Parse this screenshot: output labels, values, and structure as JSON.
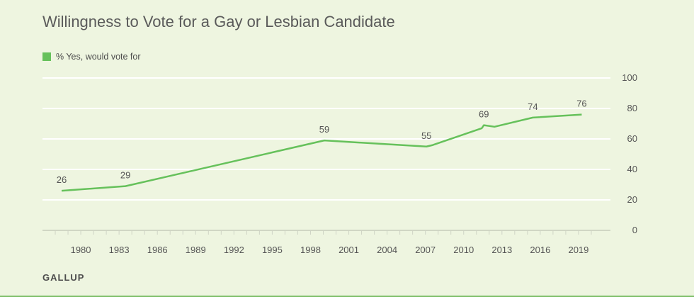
{
  "chart_data": {
    "type": "line",
    "title": "Willingness to Vote for a Gay or Lesbian Candidate",
    "xlabel": "",
    "ylabel": "",
    "ylim": [
      0,
      100
    ],
    "y_ticks": [
      "0",
      "20",
      "40",
      "60",
      "80",
      "100"
    ],
    "x_ticks": [
      "1980",
      "1983",
      "1986",
      "1989",
      "1992",
      "1995",
      "1998",
      "2001",
      "2004",
      "2007",
      "2010",
      "2013",
      "2016",
      "2019"
    ],
    "grid": true,
    "legend_position": "top-left",
    "series": [
      {
        "name": "% Yes, would vote for",
        "color": "#66c15b",
        "points": [
          {
            "x": "1978-07",
            "y": 26,
            "label": "26"
          },
          {
            "x": "1983-07",
            "y": 29,
            "label": "29"
          },
          {
            "x": "1999-02",
            "y": 59,
            "label": "59"
          },
          {
            "x": "2007-02",
            "y": 55,
            "label": "55"
          },
          {
            "x": "2007-08",
            "y": 56
          },
          {
            "x": "2011-06",
            "y": 67
          },
          {
            "x": "2011-08",
            "y": 69,
            "label": "69"
          },
          {
            "x": "2012-06",
            "y": 68
          },
          {
            "x": "2015-06",
            "y": 74,
            "label": "74"
          },
          {
            "x": "2019-04",
            "y": 76,
            "label": "76"
          }
        ]
      }
    ]
  },
  "source": "GALLUP"
}
